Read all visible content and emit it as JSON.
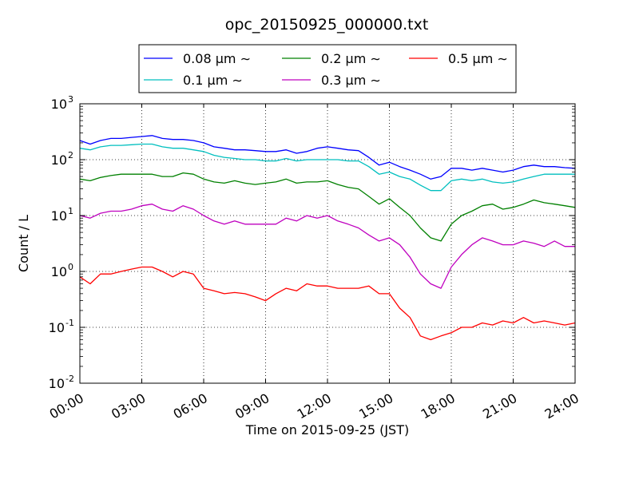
{
  "chart_data": {
    "type": "line",
    "title": "opc_20150925_000000.txt",
    "xlabel": "Time on 2015-09-25 (JST)",
    "ylabel": "Count / L",
    "x_unit": "hours",
    "xlim": [
      0,
      24
    ],
    "ylim": [
      0.01,
      1000
    ],
    "yscale": "log",
    "grid": true,
    "legend_position": "top-center",
    "x_ticks": [
      {
        "value": 0,
        "label": "00:00"
      },
      {
        "value": 3,
        "label": "03:00"
      },
      {
        "value": 6,
        "label": "06:00"
      },
      {
        "value": 9,
        "label": "09:00"
      },
      {
        "value": 12,
        "label": "12:00"
      },
      {
        "value": 15,
        "label": "15:00"
      },
      {
        "value": 18,
        "label": "18:00"
      },
      {
        "value": 21,
        "label": "21:00"
      },
      {
        "value": 24,
        "label": "24:00"
      }
    ],
    "y_ticks": [
      {
        "value": 1000,
        "base": "10",
        "exp": "3"
      },
      {
        "value": 100,
        "base": "10",
        "exp": "2"
      },
      {
        "value": 10,
        "base": "10",
        "exp": "1"
      },
      {
        "value": 1,
        "base": "10",
        "exp": "0"
      },
      {
        "value": 0.1,
        "base": "10",
        "exp": "-1"
      },
      {
        "value": 0.01,
        "base": "10",
        "exp": "-2"
      }
    ],
    "x": [
      0,
      0.5,
      1,
      1.5,
      2,
      2.5,
      3,
      3.5,
      4,
      4.5,
      5,
      5.5,
      6,
      6.5,
      7,
      7.5,
      8,
      8.5,
      9,
      9.5,
      10,
      10.5,
      11,
      11.5,
      12,
      12.5,
      13,
      13.5,
      14,
      14.5,
      15,
      15.5,
      16,
      16.5,
      17,
      17.5,
      18,
      18.5,
      19,
      19.5,
      20,
      20.5,
      21,
      21.5,
      22,
      22.5,
      23,
      23.5,
      24
    ],
    "series": [
      {
        "name": "0.08 μm ∼",
        "color": "#0000ff",
        "values": [
          220,
          190,
          220,
          240,
          240,
          250,
          260,
          270,
          240,
          230,
          230,
          220,
          200,
          170,
          160,
          150,
          150,
          145,
          140,
          140,
          150,
          130,
          140,
          160,
          170,
          160,
          150,
          145,
          110,
          80,
          90,
          75,
          65,
          55,
          45,
          50,
          70,
          70,
          65,
          70,
          65,
          60,
          65,
          75,
          80,
          75,
          75,
          72,
          70
        ]
      },
      {
        "name": "0.1 μm ∼",
        "color": "#00bfbf",
        "values": [
          160,
          150,
          170,
          180,
          180,
          185,
          190,
          190,
          170,
          160,
          160,
          150,
          140,
          120,
          110,
          105,
          100,
          100,
          95,
          95,
          105,
          95,
          100,
          100,
          100,
          100,
          95,
          95,
          75,
          55,
          60,
          50,
          45,
          35,
          28,
          28,
          42,
          45,
          42,
          45,
          40,
          38,
          40,
          45,
          50,
          55,
          55,
          55,
          55
        ]
      },
      {
        "name": "0.2 μm ∼",
        "color": "#008000",
        "values": [
          45,
          42,
          48,
          52,
          55,
          55,
          55,
          55,
          50,
          50,
          58,
          55,
          45,
          40,
          38,
          42,
          38,
          36,
          38,
          40,
          45,
          38,
          40,
          40,
          42,
          36,
          32,
          30,
          22,
          16,
          20,
          14,
          10,
          6,
          4,
          3.5,
          7,
          10,
          12,
          15,
          16,
          13,
          14,
          16,
          19,
          17,
          16,
          15,
          14
        ]
      },
      {
        "name": "0.3 μm ∼",
        "color": "#bf00bf",
        "values": [
          10,
          9,
          11,
          12,
          12,
          13,
          15,
          16,
          13,
          12,
          15,
          13,
          10,
          8,
          7,
          8,
          7,
          7,
          7,
          7,
          9,
          8,
          10,
          9,
          10,
          8,
          7,
          6,
          4.5,
          3.5,
          4,
          3,
          1.8,
          0.9,
          0.6,
          0.5,
          1.2,
          2,
          3,
          4,
          3.5,
          3,
          3,
          3.5,
          3.2,
          2.8,
          3.5,
          2.8,
          2.8
        ]
      },
      {
        "name": "0.5 μm ∼",
        "color": "#ff0000",
        "values": [
          0.8,
          0.6,
          0.9,
          0.9,
          1.0,
          1.1,
          1.2,
          1.2,
          1.0,
          0.8,
          1.0,
          0.9,
          0.5,
          0.45,
          0.4,
          0.42,
          0.4,
          0.35,
          0.3,
          0.4,
          0.5,
          0.45,
          0.6,
          0.55,
          0.55,
          0.5,
          0.5,
          0.5,
          0.55,
          0.4,
          0.4,
          0.22,
          0.15,
          0.07,
          0.06,
          0.07,
          0.08,
          0.1,
          0.1,
          0.12,
          0.11,
          0.13,
          0.12,
          0.15,
          0.12,
          0.13,
          0.12,
          0.11,
          0.12
        ]
      }
    ]
  }
}
